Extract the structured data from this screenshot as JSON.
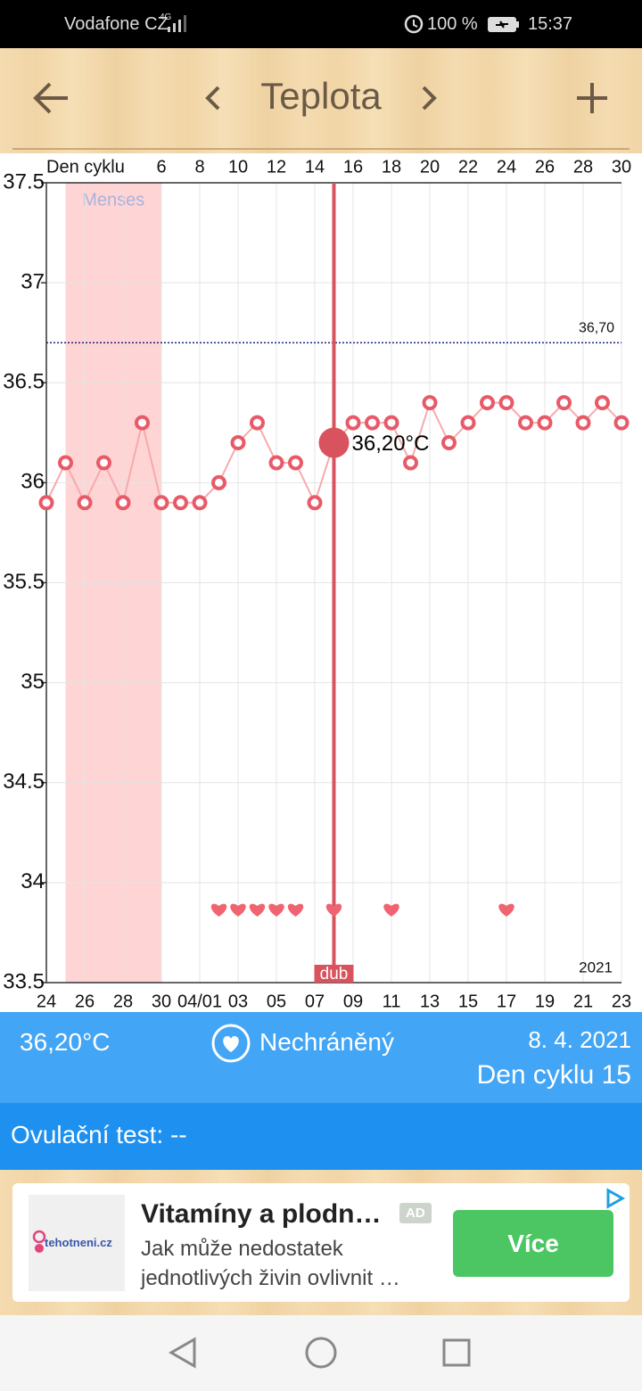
{
  "status_bar": {
    "carrier": "Vodafone CZ",
    "network": "4G",
    "battery": "100 %",
    "time": "15:37"
  },
  "header": {
    "title": "Teplota"
  },
  "chart_data": {
    "type": "line",
    "x_label": "Den cyklu",
    "x": [
      0,
      1,
      2,
      3,
      4,
      5,
      6,
      7,
      8,
      9,
      10,
      11,
      12,
      13,
      14,
      15,
      16,
      17,
      18,
      19,
      20,
      21,
      22,
      23,
      24,
      25,
      26,
      27,
      28,
      29,
      30
    ],
    "values": [
      35.9,
      36.1,
      35.9,
      36.1,
      35.9,
      36.3,
      35.9,
      35.9,
      35.9,
      36.0,
      36.2,
      36.3,
      36.1,
      36.1,
      35.9,
      36.2,
      36.3,
      36.3,
      36.3,
      36.1,
      36.4,
      36.2,
      36.3,
      36.4,
      36.4,
      36.3,
      36.3,
      36.4,
      36.3,
      36.4,
      36.3
    ],
    "color": "#e85a68",
    "line_color": "#f6aaad",
    "xlim": [
      0,
      30
    ],
    "ylim": [
      33.5,
      37.5
    ],
    "yticks": [
      33.5,
      34,
      34.5,
      35,
      35.5,
      36,
      36.5,
      37,
      37.5
    ],
    "xticks": [
      {
        "value": 0,
        "label": "24"
      },
      {
        "value": 2,
        "label": "26"
      },
      {
        "value": 4,
        "label": "28"
      },
      {
        "value": 6,
        "label": "30"
      },
      {
        "value": 8,
        "label": "04/01"
      },
      {
        "value": 10,
        "label": "03"
      },
      {
        "value": 12,
        "label": "05"
      },
      {
        "value": 14,
        "label": "07"
      },
      {
        "value": 16,
        "label": "09"
      },
      {
        "value": 18,
        "label": "11"
      },
      {
        "value": 20,
        "label": "13"
      },
      {
        "value": 22,
        "label": "15"
      },
      {
        "value": 24,
        "label": "17"
      },
      {
        "value": 26,
        "label": "19"
      },
      {
        "value": 28,
        "label": "21"
      },
      {
        "value": 30,
        "label": "23"
      }
    ],
    "xticks_top": [
      6,
      8,
      10,
      12,
      14,
      16,
      18,
      20,
      22,
      24,
      26,
      28,
      30
    ],
    "grid": true,
    "menses": {
      "label": "Menses",
      "from": 1,
      "to": 6,
      "color": "#ffd4d4"
    },
    "reference_line": {
      "value": 36.7,
      "label": "36,70",
      "color": "#1a237e"
    },
    "selected": {
      "x": 15,
      "label": "36,20°C",
      "date_label": "dub",
      "color": "#d9535e"
    },
    "intercourse_days": [
      9,
      10,
      11,
      12,
      13,
      15,
      18,
      24
    ],
    "year_label": "2021"
  },
  "info": {
    "temperature": "36,20°C",
    "protection": "Nechráněný",
    "date": "8. 4. 2021",
    "cycle_day": "Den cyklu 15"
  },
  "ovulation": {
    "text": "Ovulační test: --"
  },
  "ad": {
    "logo": "tehotneni.cz",
    "title": "Vitamíny a plodn…",
    "badge": "AD",
    "text_lines": [
      "Jak může nedostatek",
      "jednotlivých živin ovlivnit …"
    ],
    "button": "Více"
  }
}
